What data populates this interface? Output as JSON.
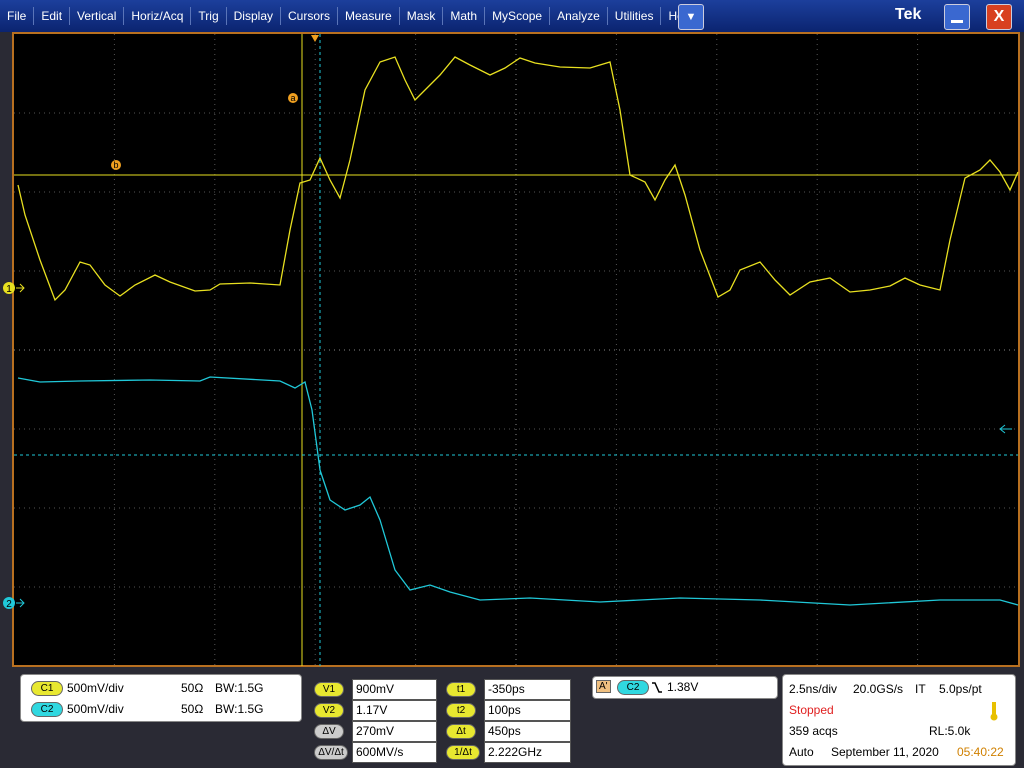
{
  "menu": [
    "File",
    "Edit",
    "Vertical",
    "Horiz/Acq",
    "Trig",
    "Display",
    "Cursors",
    "Measure",
    "Mask",
    "Math",
    "MyScope",
    "Analyze",
    "Utilities",
    "Help"
  ],
  "brand": "Tek",
  "markers": {
    "ch1": "1",
    "ch2": "2",
    "cursor_a": "a",
    "cursor_b": "b"
  },
  "channels": [
    {
      "label": "C1",
      "scale": "500mV/div",
      "impedance": "50Ω",
      "bandwidth": "BW:1.5G"
    },
    {
      "label": "C2",
      "scale": "500mV/div",
      "impedance": "50Ω",
      "bandwidth": "BW:1.5G"
    }
  ],
  "cursors": {
    "voltage": [
      {
        "label": "V1",
        "value": "900mV"
      },
      {
        "label": "V2",
        "value": "1.17V"
      },
      {
        "label": "ΔV",
        "value": "270mV"
      },
      {
        "label": "ΔV/Δt",
        "value": "600MV/s"
      }
    ],
    "time": [
      {
        "label": "t1",
        "value": "-350ps"
      },
      {
        "label": "t2",
        "value": "100ps"
      },
      {
        "label": "Δt",
        "value": "450ps"
      },
      {
        "label": "1/Δt",
        "value": "2.222GHz"
      }
    ]
  },
  "trigger": {
    "type": "A'",
    "source": "C2",
    "level": "1.38V"
  },
  "acquisition": {
    "horizontal_scale": "2.5ns/div",
    "sample_rate": "20.0GS/s",
    "mode": "IT",
    "resolution": "5.0ps/pt",
    "status": "Stopped",
    "acqs": "359 acqs",
    "record_length": "RL:5.0k",
    "trigger_mode": "Auto",
    "date": "September 11, 2020",
    "time": "05:40:22"
  }
}
